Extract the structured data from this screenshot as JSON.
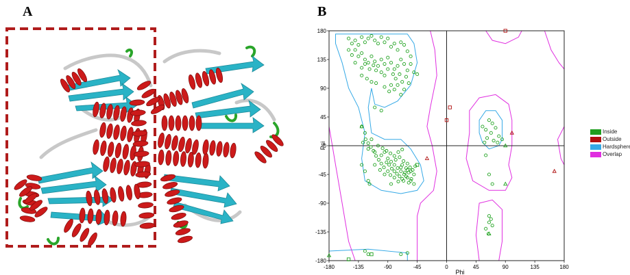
{
  "panels": {
    "a_label": "A",
    "b_label": "B"
  },
  "colors": {
    "helix": "#cc1a1a",
    "strand": "#2ab3c6",
    "coil": "#c8c8c8",
    "turn": "#2aa52a",
    "box": "#b01c1c"
  },
  "chart_data": {
    "type": "scatter",
    "title": "",
    "xlabel": "Phi",
    "ylabel": "Psi",
    "xlim": [
      -180,
      180
    ],
    "ylim": [
      -180,
      180
    ],
    "xticks": [
      "-180",
      "-135",
      "-90",
      "-45",
      "0",
      "45",
      "90",
      "135",
      "180"
    ],
    "yticks": [
      "180",
      "135",
      "90",
      "45",
      "0",
      "-45",
      "-90",
      "-135",
      "-180"
    ],
    "legend": [
      {
        "name": "Inside",
        "color": "#1f9e1f"
      },
      {
        "name": "Outside",
        "color": "#b01010"
      },
      {
        "name": "Hardsphere",
        "color": "#35a9e6"
      },
      {
        "name": "Overlap",
        "color": "#e02ee0"
      }
    ],
    "series": [
      {
        "name": "Inside",
        "marker": "circle",
        "color": "#1fa21f",
        "points": [
          [
            -150,
            168
          ],
          [
            -145,
            160
          ],
          [
            -140,
            165
          ],
          [
            -135,
            158
          ],
          [
            -130,
            170
          ],
          [
            -125,
            162
          ],
          [
            -120,
            168
          ],
          [
            -115,
            172
          ],
          [
            -110,
            165
          ],
          [
            -105,
            160
          ],
          [
            -100,
            170
          ],
          [
            -95,
            162
          ],
          [
            -90,
            168
          ],
          [
            -85,
            155
          ],
          [
            -80,
            160
          ],
          [
            -75,
            150
          ],
          [
            -70,
            162
          ],
          [
            -65,
            158
          ],
          [
            -60,
            148
          ],
          [
            -55,
            140
          ],
          [
            -150,
            150
          ],
          [
            -145,
            142
          ],
          [
            -140,
            150
          ],
          [
            -135,
            140
          ],
          [
            -130,
            145
          ],
          [
            -125,
            135
          ],
          [
            -120,
            130
          ],
          [
            -115,
            140
          ],
          [
            -110,
            132
          ],
          [
            -105,
            125
          ],
          [
            -100,
            135
          ],
          [
            -95,
            128
          ],
          [
            -90,
            138
          ],
          [
            -85,
            130
          ],
          [
            -80,
            120
          ],
          [
            -75,
            125
          ],
          [
            -70,
            135
          ],
          [
            -65,
            128
          ],
          [
            -60,
            118
          ],
          [
            -55,
            128
          ],
          [
            -140,
            130
          ],
          [
            -130,
            122
          ],
          [
            -125,
            128
          ],
          [
            -118,
            120
          ],
          [
            -112,
            126
          ],
          [
            -108,
            118
          ],
          [
            -100,
            115
          ],
          [
            -95,
            110
          ],
          [
            -90,
            120
          ],
          [
            -82,
            112
          ],
          [
            -78,
            105
          ],
          [
            -72,
            112
          ],
          [
            -68,
            100
          ],
          [
            -62,
            108
          ],
          [
            -58,
            98
          ],
          [
            -50,
            115
          ],
          [
            -45,
            112
          ],
          [
            -85,
            95
          ],
          [
            -80,
            88
          ],
          [
            -75,
            95
          ],
          [
            -130,
            110
          ],
          [
            -122,
            105
          ],
          [
            -115,
            100
          ],
          [
            -108,
            98
          ],
          [
            -95,
            92
          ],
          [
            -88,
            85
          ],
          [
            -70,
            80
          ],
          [
            -65,
            88
          ],
          [
            -110,
            60
          ],
          [
            -100,
            55
          ],
          [
            -130,
            30
          ],
          [
            -125,
            20
          ],
          [
            -128,
            5
          ],
          [
            -120,
            -5
          ],
          [
            -115,
            10
          ],
          [
            -110,
            -10
          ],
          [
            -105,
            0
          ],
          [
            -100,
            -15
          ],
          [
            -95,
            -10
          ],
          [
            -90,
            -20
          ],
          [
            -85,
            -25
          ],
          [
            -80,
            -30
          ],
          [
            -75,
            -35
          ],
          [
            -70,
            -40
          ],
          [
            -65,
            -45
          ],
          [
            -60,
            -50
          ],
          [
            -55,
            -40
          ],
          [
            -50,
            -45
          ],
          [
            -62,
            -35
          ],
          [
            -68,
            -30
          ],
          [
            -72,
            -48
          ],
          [
            -66,
            -55
          ],
          [
            -58,
            -42
          ],
          [
            -54,
            -52
          ],
          [
            -60,
            -38
          ],
          [
            -64,
            -42
          ],
          [
            -70,
            -34
          ],
          [
            -76,
            -44
          ],
          [
            -80,
            -40
          ],
          [
            -84,
            -36
          ],
          [
            -88,
            -30
          ],
          [
            -92,
            -26
          ],
          [
            -78,
            -22
          ],
          [
            -72,
            -18
          ],
          [
            -66,
            -24
          ],
          [
            -60,
            -28
          ],
          [
            -56,
            -34
          ],
          [
            -52,
            -38
          ],
          [
            -48,
            -32
          ],
          [
            -58,
            -58
          ],
          [
            -62,
            -48
          ],
          [
            -68,
            -52
          ],
          [
            -74,
            -56
          ],
          [
            -80,
            -50
          ],
          [
            -86,
            -46
          ],
          [
            -90,
            -40
          ],
          [
            -96,
            -34
          ],
          [
            -100,
            -28
          ],
          [
            -104,
            -22
          ],
          [
            -108,
            -16
          ],
          [
            -112,
            -8
          ],
          [
            -116,
            -2
          ],
          [
            -120,
            4
          ],
          [
            -124,
            10
          ],
          [
            -98,
            -4
          ],
          [
            -92,
            -8
          ],
          [
            -86,
            -12
          ],
          [
            -80,
            -16
          ],
          [
            -74,
            -10
          ],
          [
            -68,
            -6
          ],
          [
            -130,
            -30
          ],
          [
            -125,
            -40
          ],
          [
            -120,
            -55
          ],
          [
            -118,
            -60
          ],
          [
            -85,
            -60
          ],
          [
            -95,
            -45
          ],
          [
            -102,
            -38
          ],
          [
            -110,
            -30
          ],
          [
            -55,
            -55
          ],
          [
            -50,
            -60
          ],
          [
            -125,
            -165
          ],
          [
            -120,
            -170
          ],
          [
            -70,
            -170
          ],
          [
            -60,
            -168
          ],
          [
            55,
            30
          ],
          [
            60,
            25
          ],
          [
            65,
            40
          ],
          [
            70,
            35
          ],
          [
            75,
            28
          ],
          [
            80,
            15
          ],
          [
            58,
            5
          ],
          [
            62,
            12
          ],
          [
            68,
            20
          ],
          [
            72,
            8
          ],
          [
            78,
            5
          ],
          [
            85,
            10
          ],
          [
            60,
            -15
          ],
          [
            65,
            -45
          ],
          [
            70,
            -60
          ],
          [
            65,
            -110
          ],
          [
            65,
            -120
          ],
          [
            70,
            -125
          ],
          [
            60,
            -130
          ],
          [
            64,
            -138
          ],
          [
            68,
            -115
          ]
        ]
      },
      {
        "name": "Outside",
        "marker": "square",
        "color": "#b01010",
        "points": [
          [
            5,
            60
          ],
          [
            0,
            40
          ],
          [
            90,
            180
          ]
        ]
      },
      {
        "name": "Outside",
        "marker": "triangle",
        "color": "#b01010",
        "points": [
          [
            100,
            20
          ],
          [
            165,
            -40
          ],
          [
            -30,
            -20
          ]
        ]
      },
      {
        "name": "Inside",
        "marker": "triangle",
        "color": "#1fa21f",
        "points": [
          [
            -180,
            -172
          ],
          [
            -130,
            30
          ],
          [
            90,
            -60
          ],
          [
            90,
            0
          ],
          [
            65,
            -138
          ]
        ]
      },
      {
        "name": "Inside",
        "marker": "square",
        "color": "#1fa21f",
        "points": [
          [
            -150,
            -178
          ],
          [
            -115,
            -170
          ],
          [
            -45,
            -30
          ]
        ]
      }
    ]
  }
}
